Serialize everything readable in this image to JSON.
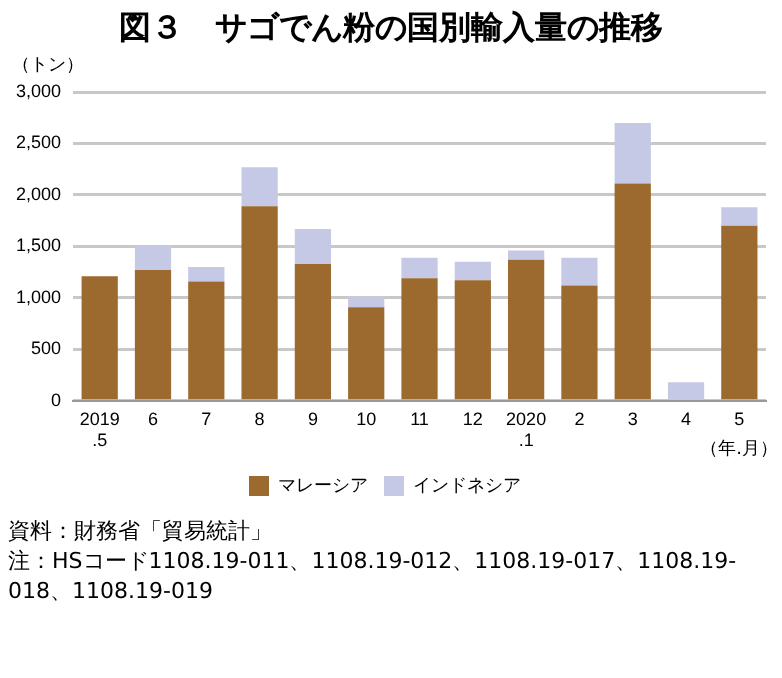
{
  "chart_data": {
    "type": "bar",
    "title": "図３　サゴでん粉の国別輸入量の推移",
    "ylabel": "（トン）",
    "xlabel": "（年.月）",
    "categories": [
      "2019\n.5",
      "6",
      "7",
      "8",
      "9",
      "10",
      "11",
      "12",
      "2020\n.1",
      "2",
      "3",
      "4",
      "5"
    ],
    "series": [
      {
        "name": "マレーシア",
        "color": "#9c6a2e",
        "values": [
          1210,
          1270,
          1160,
          1890,
          1330,
          910,
          1190,
          1170,
          1370,
          1120,
          2110,
          0,
          1700
        ]
      },
      {
        "name": "インドネシア",
        "color": "#c5c9e6",
        "values": [
          0,
          240,
          140,
          380,
          340,
          100,
          200,
          180,
          90,
          270,
          590,
          180,
          180
        ]
      }
    ],
    "stacked": true,
    "ylim": [
      0,
      3000
    ],
    "yticks": [
      {
        "value": 0,
        "label": "0"
      },
      {
        "value": 500,
        "label": "500"
      },
      {
        "value": 1000,
        "label": "1,000"
      },
      {
        "value": 1500,
        "label": "1,500"
      },
      {
        "value": 2000,
        "label": "2,000"
      },
      {
        "value": 2500,
        "label": "2,500"
      },
      {
        "value": 3000,
        "label": "3,000"
      }
    ],
    "grid": "y",
    "legend": "bottom",
    "annotations": [
      "資料：財務省「貿易統計」",
      "注：HSコード1108.19-011、1108.19-012、1108.19-017、1108.19-018、1108.19-019"
    ]
  }
}
